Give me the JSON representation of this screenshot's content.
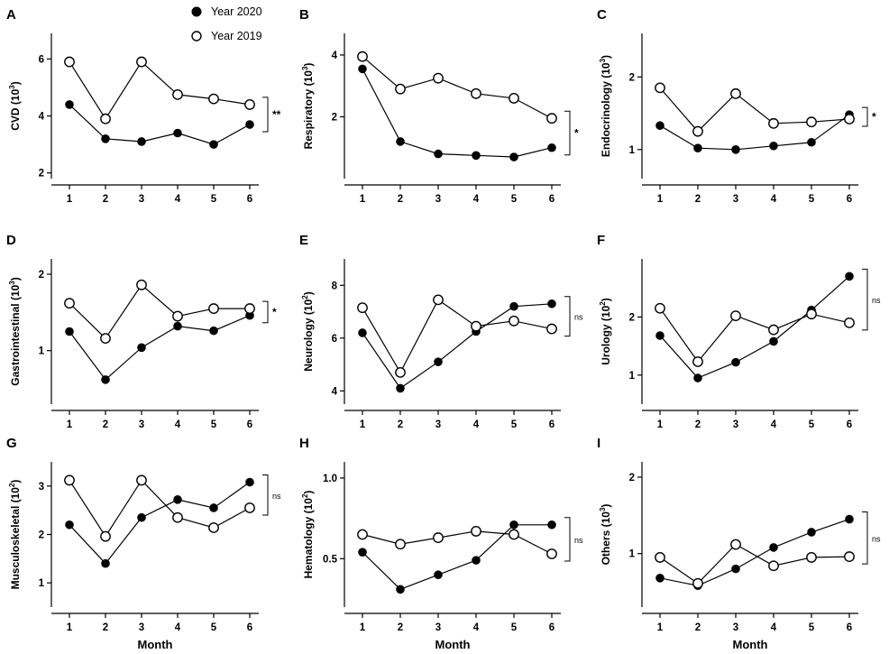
{
  "legend": {
    "series_2020": "Year 2020",
    "series_2019": "Year 2019"
  },
  "chart_data": [
    {
      "type": "line",
      "panel": "A",
      "ylabel": "CVD",
      "exp": "3",
      "xlabel": "",
      "categories": [
        "1",
        "2",
        "3",
        "4",
        "5",
        "6"
      ],
      "ylim": [
        1.8,
        6.9
      ],
      "yticks": [
        2,
        4,
        6
      ],
      "series": [
        {
          "name": "Year 2020",
          "values": [
            4.4,
            3.2,
            3.1,
            3.4,
            3.0,
            3.7
          ]
        },
        {
          "name": "Year 2019",
          "values": [
            5.9,
            3.9,
            5.9,
            4.75,
            4.6,
            4.4
          ]
        }
      ],
      "significance": "**"
    },
    {
      "type": "line",
      "panel": "B",
      "ylabel": "Respiratory",
      "exp": "3",
      "xlabel": "",
      "categories": [
        "1",
        "2",
        "3",
        "4",
        "5",
        "6"
      ],
      "ylim": [
        0,
        4.7
      ],
      "yticks": [
        2,
        4
      ],
      "series": [
        {
          "name": "Year 2020",
          "values": [
            3.55,
            1.2,
            0.8,
            0.75,
            0.7,
            1.0
          ]
        },
        {
          "name": "Year 2019",
          "values": [
            3.95,
            2.9,
            3.25,
            2.75,
            2.6,
            1.95
          ]
        }
      ],
      "significance": "*"
    },
    {
      "type": "line",
      "panel": "C",
      "ylabel": "Endocrinology",
      "exp": "3",
      "xlabel": "",
      "categories": [
        "1",
        "2",
        "3",
        "4",
        "5",
        "6"
      ],
      "ylim": [
        0.6,
        2.6
      ],
      "yticks": [
        1,
        2
      ],
      "series": [
        {
          "name": "Year 2020",
          "values": [
            1.33,
            1.02,
            1.0,
            1.05,
            1.1,
            1.48
          ]
        },
        {
          "name": "Year 2019",
          "values": [
            1.85,
            1.25,
            1.77,
            1.36,
            1.38,
            1.42
          ]
        }
      ],
      "significance": "*"
    },
    {
      "type": "line",
      "panel": "D",
      "ylabel": "Gastrointestinal",
      "exp": "3",
      "xlabel": "",
      "categories": [
        "1",
        "2",
        "3",
        "4",
        "5",
        "6"
      ],
      "ylim": [
        0.3,
        2.2
      ],
      "yticks": [
        1,
        2
      ],
      "series": [
        {
          "name": "Year 2020",
          "values": [
            1.25,
            0.62,
            1.04,
            1.32,
            1.26,
            1.46
          ]
        },
        {
          "name": "Year 2019",
          "values": [
            1.62,
            1.16,
            1.86,
            1.45,
            1.55,
            1.55
          ]
        }
      ],
      "significance": "*"
    },
    {
      "type": "line",
      "panel": "E",
      "ylabel": "Neurology",
      "exp": "2",
      "xlabel": "",
      "categories": [
        "1",
        "2",
        "3",
        "4",
        "5",
        "6"
      ],
      "ylim": [
        3.5,
        9.0
      ],
      "yticks": [
        4,
        6,
        8
      ],
      "series": [
        {
          "name": "Year 2020",
          "values": [
            6.2,
            4.1,
            5.1,
            6.25,
            7.2,
            7.3
          ]
        },
        {
          "name": "Year 2019",
          "values": [
            7.15,
            4.7,
            7.45,
            6.45,
            6.65,
            6.35
          ]
        }
      ],
      "significance": "ns"
    },
    {
      "type": "line",
      "panel": "F",
      "ylabel": "Urology",
      "exp": "2",
      "xlabel": "",
      "categories": [
        "1",
        "2",
        "3",
        "4",
        "5",
        "6"
      ],
      "ylim": [
        0.5,
        3.0
      ],
      "yticks": [
        1,
        2
      ],
      "series": [
        {
          "name": "Year 2020",
          "values": [
            1.68,
            0.95,
            1.22,
            1.58,
            2.12,
            2.7
          ]
        },
        {
          "name": "Year 2019",
          "values": [
            2.15,
            1.23,
            2.02,
            1.78,
            2.05,
            1.9
          ]
        }
      ],
      "significance": "ns"
    },
    {
      "type": "line",
      "panel": "G",
      "ylabel": "Musculoskeletal",
      "exp": "2",
      "xlabel": "Month",
      "categories": [
        "1",
        "2",
        "3",
        "4",
        "5",
        "6"
      ],
      "ylim": [
        0.5,
        3.5
      ],
      "yticks": [
        1,
        2,
        3
      ],
      "series": [
        {
          "name": "Year 2020",
          "values": [
            2.2,
            1.4,
            2.35,
            2.72,
            2.55,
            3.08
          ]
        },
        {
          "name": "Year 2019",
          "values": [
            3.12,
            1.96,
            3.12,
            2.35,
            2.14,
            2.55
          ]
        }
      ],
      "significance": "ns"
    },
    {
      "type": "line",
      "panel": "H",
      "ylabel": "Hematology",
      "exp": "2",
      "xlabel": "Month",
      "categories": [
        "1",
        "2",
        "3",
        "4",
        "5",
        "6"
      ],
      "ylim": [
        0.2,
        1.1
      ],
      "yticks": [
        0.5,
        1.0
      ],
      "yticklabels": [
        "0.5",
        "1.0"
      ],
      "series": [
        {
          "name": "Year 2020",
          "values": [
            0.54,
            0.31,
            0.4,
            0.49,
            0.71,
            0.71
          ]
        },
        {
          "name": "Year 2019",
          "values": [
            0.65,
            0.59,
            0.63,
            0.67,
            0.65,
            0.53
          ]
        }
      ],
      "significance": "ns"
    },
    {
      "type": "line",
      "panel": "I",
      "ylabel": "Others",
      "exp": "3",
      "xlabel": "Month",
      "categories": [
        "1",
        "2",
        "3",
        "4",
        "5",
        "6"
      ],
      "ylim": [
        0.3,
        2.2
      ],
      "yticks": [
        1,
        2
      ],
      "series": [
        {
          "name": "Year 2020",
          "values": [
            0.68,
            0.58,
            0.8,
            1.08,
            1.28,
            1.45
          ]
        },
        {
          "name": "Year 2019",
          "values": [
            0.95,
            0.61,
            1.12,
            0.84,
            0.95,
            0.96
          ]
        }
      ],
      "significance": "ns"
    }
  ]
}
